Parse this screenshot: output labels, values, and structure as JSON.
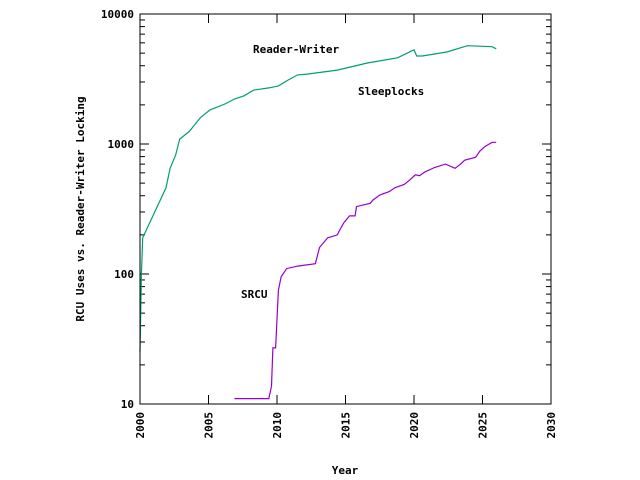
{
  "chart_data": {
    "type": "line",
    "title": "",
    "xlabel": "Year",
    "ylabel": "RCU Uses vs. Reader-Writer Locking",
    "xlim": [
      2000,
      2030
    ],
    "ylim": [
      10,
      10000
    ],
    "yscale": "log",
    "grid": false,
    "x_ticks": [
      "2000",
      "2005",
      "2010",
      "2015",
      "2020",
      "2025",
      "2030"
    ],
    "y_ticks": [
      "10",
      "100",
      "1000",
      "10000"
    ],
    "series": [
      {
        "name": "Reader-Writer",
        "label": "Reader-Writer",
        "color": "#009e73",
        "x": [
          2000.0,
          2000.1,
          2000.2,
          2001.9,
          2002.2,
          2002.6,
          2002.9,
          2003.6,
          2004.4,
          2005.1,
          2006.2,
          2006.9,
          2007.6,
          2008.3,
          2009.4,
          2010.1,
          2010.8,
          2011.5,
          2012.2,
          2014.4,
          2016.6,
          2018.8,
          2020.0,
          2020.2,
          2020.6,
          2022.4,
          2023.9,
          2025.7,
          2026.0
        ],
        "y": [
          25,
          100,
          190,
          460,
          650,
          820,
          1090,
          1250,
          1590,
          1830,
          2030,
          2220,
          2350,
          2600,
          2700,
          2800,
          3100,
          3400,
          3450,
          3700,
          4200,
          4600,
          5300,
          4750,
          4750,
          5100,
          5700,
          5600,
          5400
        ]
      },
      {
        "name": "Sleeplocks",
        "label": "Sleeplocks",
        "color": "#009e73",
        "x": [],
        "y": []
      },
      {
        "name": "SRCU",
        "label": "SRCU",
        "color": "#9400d3",
        "x": [
          2006.9,
          2009.4,
          2009.6,
          2009.7,
          2009.9,
          2010.1,
          2010.3,
          2010.7,
          2011.5,
          2012.8,
          2013.1,
          2013.7,
          2014.4,
          2014.6,
          2014.9,
          2015.3,
          2015.7,
          2015.8,
          2016.8,
          2017.0,
          2017.5,
          2018.2,
          2018.6,
          2019.3,
          2019.7,
          2020.1,
          2020.4,
          2020.8,
          2021.5,
          2022.3,
          2023.0,
          2023.4,
          2023.7,
          2024.5,
          2024.8,
          2025.2,
          2025.7,
          2026.0
        ],
        "y": [
          11,
          11,
          13.7,
          27,
          27,
          75,
          95,
          110,
          115,
          120,
          160,
          190,
          200,
          220,
          250,
          280,
          280,
          330,
          350,
          370,
          405,
          430,
          460,
          490,
          530,
          580,
          570,
          610,
          660,
          700,
          650,
          700,
          750,
          790,
          880,
          960,
          1030,
          1030
        ]
      }
    ]
  }
}
